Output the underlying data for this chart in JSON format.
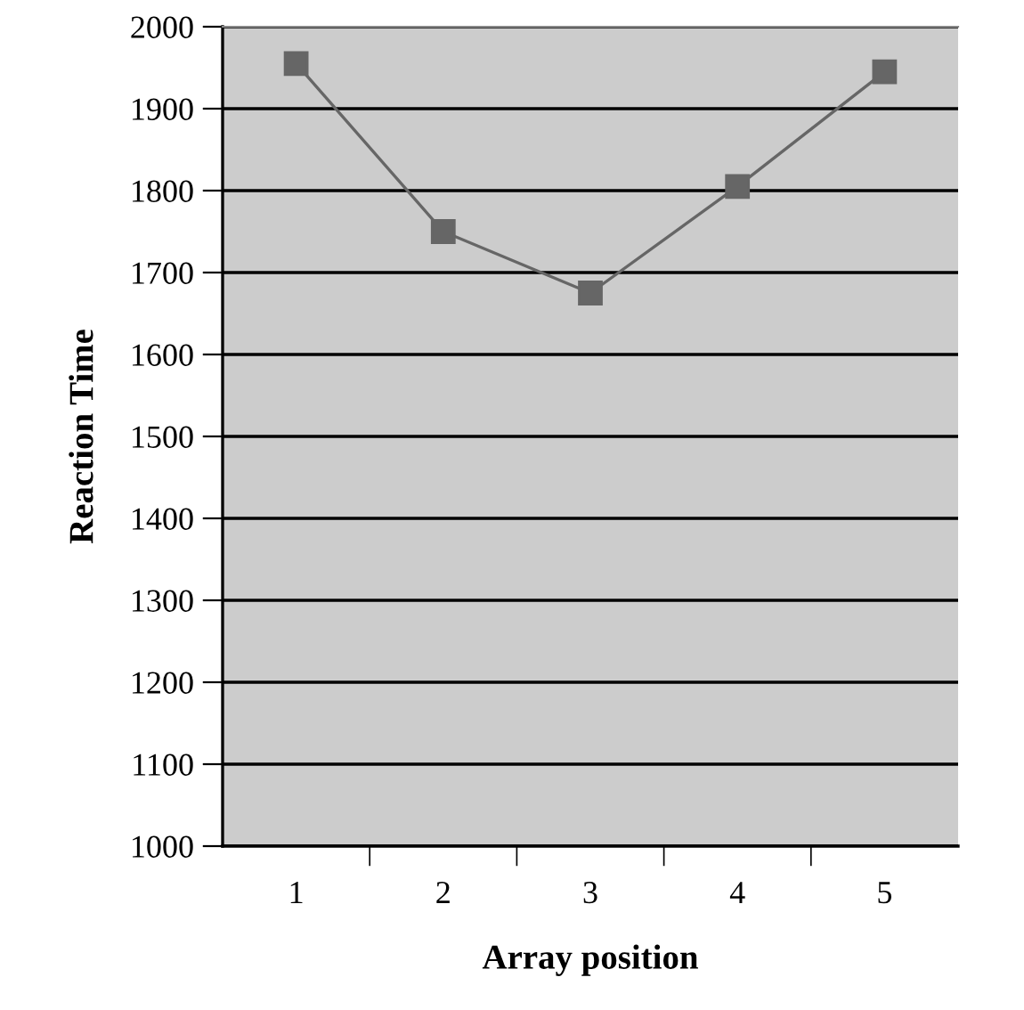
{
  "chart_data": {
    "type": "line",
    "xlabel": "Array position",
    "ylabel": "Reaction Time",
    "categories": [
      "1",
      "2",
      "3",
      "4",
      "5"
    ],
    "series": [
      {
        "color": "#666666",
        "values": [
          1955,
          1750,
          1675,
          1805,
          1945
        ]
      }
    ],
    "ylim": [
      1000,
      2000
    ],
    "yticks": [
      1000,
      1100,
      1200,
      1300,
      1400,
      1500,
      1600,
      1700,
      1800,
      1900,
      2000
    ],
    "grid": "y",
    "marker": "square",
    "line_style": "solid",
    "legend": false
  }
}
